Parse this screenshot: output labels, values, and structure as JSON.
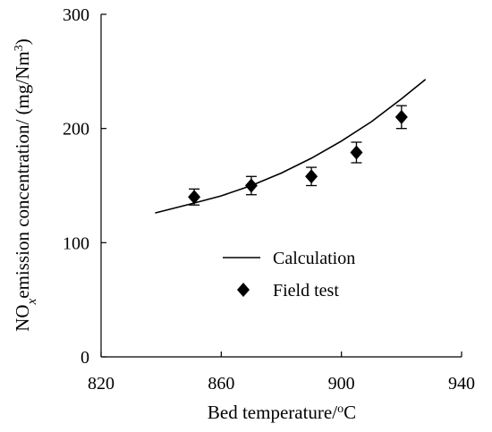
{
  "chart_data": {
    "type": "scatter",
    "xlabel": {
      "main": "Bed temperature/",
      "sup": "o",
      "tail": "C"
    },
    "ylabel": {
      "p1": "NO",
      "sub": "x",
      "p2": "emission concentration/ (mg/Nm",
      "sup": "3",
      "p3": ")"
    },
    "xlim": [
      820,
      940
    ],
    "ylim": [
      0,
      300
    ],
    "xticks": [
      820,
      860,
      900,
      940
    ],
    "yticks": [
      0,
      100,
      200,
      300
    ],
    "grid": false,
    "legend_position": "center",
    "series": [
      {
        "name": "Calculation",
        "kind": "line",
        "color": "#000000",
        "x": [
          838,
          850,
          860,
          870,
          880,
          890,
          900,
          910,
          920,
          928
        ],
        "y": [
          126,
          134,
          141,
          150,
          161,
          174,
          189,
          206,
          226,
          243
        ]
      },
      {
        "name": "Field test",
        "kind": "scatter",
        "marker": "diamond",
        "color": "#000000",
        "x": [
          851,
          870,
          890,
          905,
          920
        ],
        "y": [
          140,
          150,
          158,
          179,
          210
        ],
        "error": [
          7,
          8,
          8,
          9,
          10
        ]
      }
    ]
  }
}
